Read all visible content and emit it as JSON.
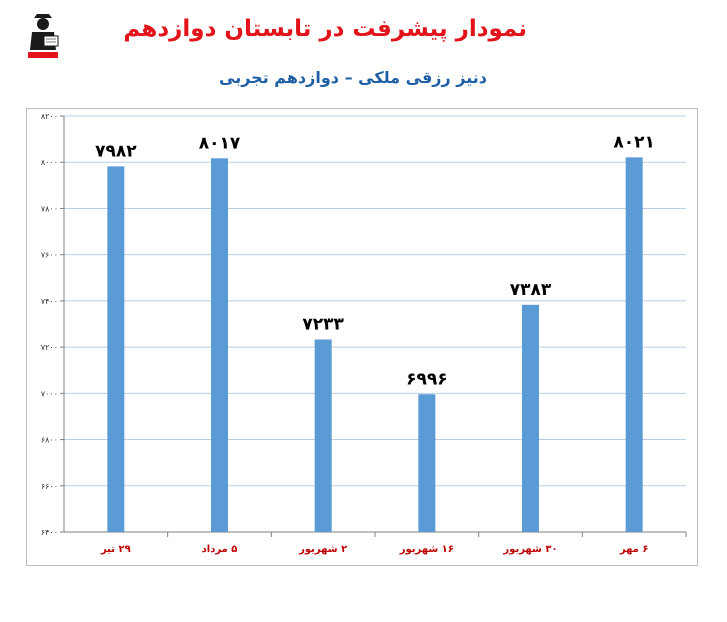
{
  "header": {
    "title": "نمودار پیشرفت در تابستان دوازدهم",
    "subtitle": "دنیز رزقی ملکی – دوازدهم تجربی"
  },
  "logo": {
    "icon": "student-mascot-logo"
  },
  "colors": {
    "title": "#e3131b",
    "subtitle": "#1f5fa6",
    "bar": "#5b9bd5",
    "grid": "#b8cfe6",
    "category_label": "#c00000"
  },
  "chart_data": {
    "type": "bar",
    "title": "",
    "xlabel": "",
    "ylabel": "",
    "categories": [
      "۲۹ تیر",
      "۵ مرداد",
      "۲ شهریور",
      "۱۶ شهریور",
      "۳۰ شهریور",
      "۶ مهر"
    ],
    "values": [
      7982,
      8017,
      7233,
      6996,
      7383,
      8021
    ],
    "value_labels": [
      "۷۹۸۲",
      "۸۰۱۷",
      "۷۲۳۳",
      "۶۹۹۶",
      "۷۳۸۳",
      "۸۰۲۱"
    ],
    "ylim": [
      6400,
      8200
    ],
    "y_ticks": [
      6400,
      6600,
      6800,
      7000,
      7200,
      7400,
      7600,
      7800,
      8000,
      8200
    ],
    "y_tick_labels": [
      "۶۴۰۰",
      "۶۶۰۰",
      "۶۸۰۰",
      "۷۰۰۰",
      "۷۲۰۰",
      "۷۴۰۰",
      "۷۶۰۰",
      "۷۸۰۰",
      "۸۰۰۰",
      "۸۲۰۰"
    ],
    "grid": true,
    "legend": "none"
  }
}
